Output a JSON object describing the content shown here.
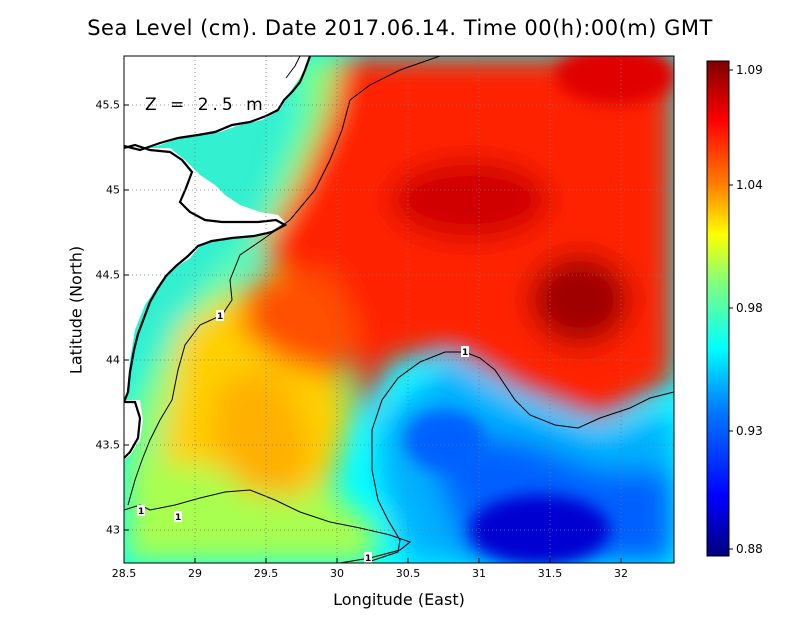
{
  "title": "Sea Level (cm). Date 2017.06.14. Time 00(h):00(m) GMT",
  "depth_label": "Z = 2.5 m",
  "xaxis": {
    "label": "Longitude (East)",
    "ticks": [
      "28.5",
      "29",
      "29.5",
      "30",
      "30.5",
      "31",
      "31.5",
      "32"
    ]
  },
  "yaxis": {
    "label": "Latitude (North)",
    "ticks": [
      "45.5",
      "45",
      "44.5",
      "44",
      "43.5",
      "43"
    ]
  },
  "colorbar": {
    "ticks": [
      "1.09",
      "1.04",
      "0.98",
      "0.93",
      "0.88"
    ],
    "colors": [
      "#00007f",
      "#0000ff",
      "#007fff",
      "#00ffff",
      "#7fff7f",
      "#ffff00",
      "#ff7f00",
      "#ff0000",
      "#7f0000"
    ]
  },
  "contour_label": "1",
  "chart_data": {
    "type": "heatmap",
    "title": "Sea Level (cm). Date 2017.06.14. Time 00(h):00(m) GMT",
    "xlabel": "Longitude (East)",
    "ylabel": "Latitude (North)",
    "xlim": [
      28.5,
      32.4
    ],
    "ylim": [
      42.8,
      45.8
    ],
    "colorbar_range": [
      0.88,
      1.09
    ],
    "contour_levels": [
      1
    ]
  }
}
